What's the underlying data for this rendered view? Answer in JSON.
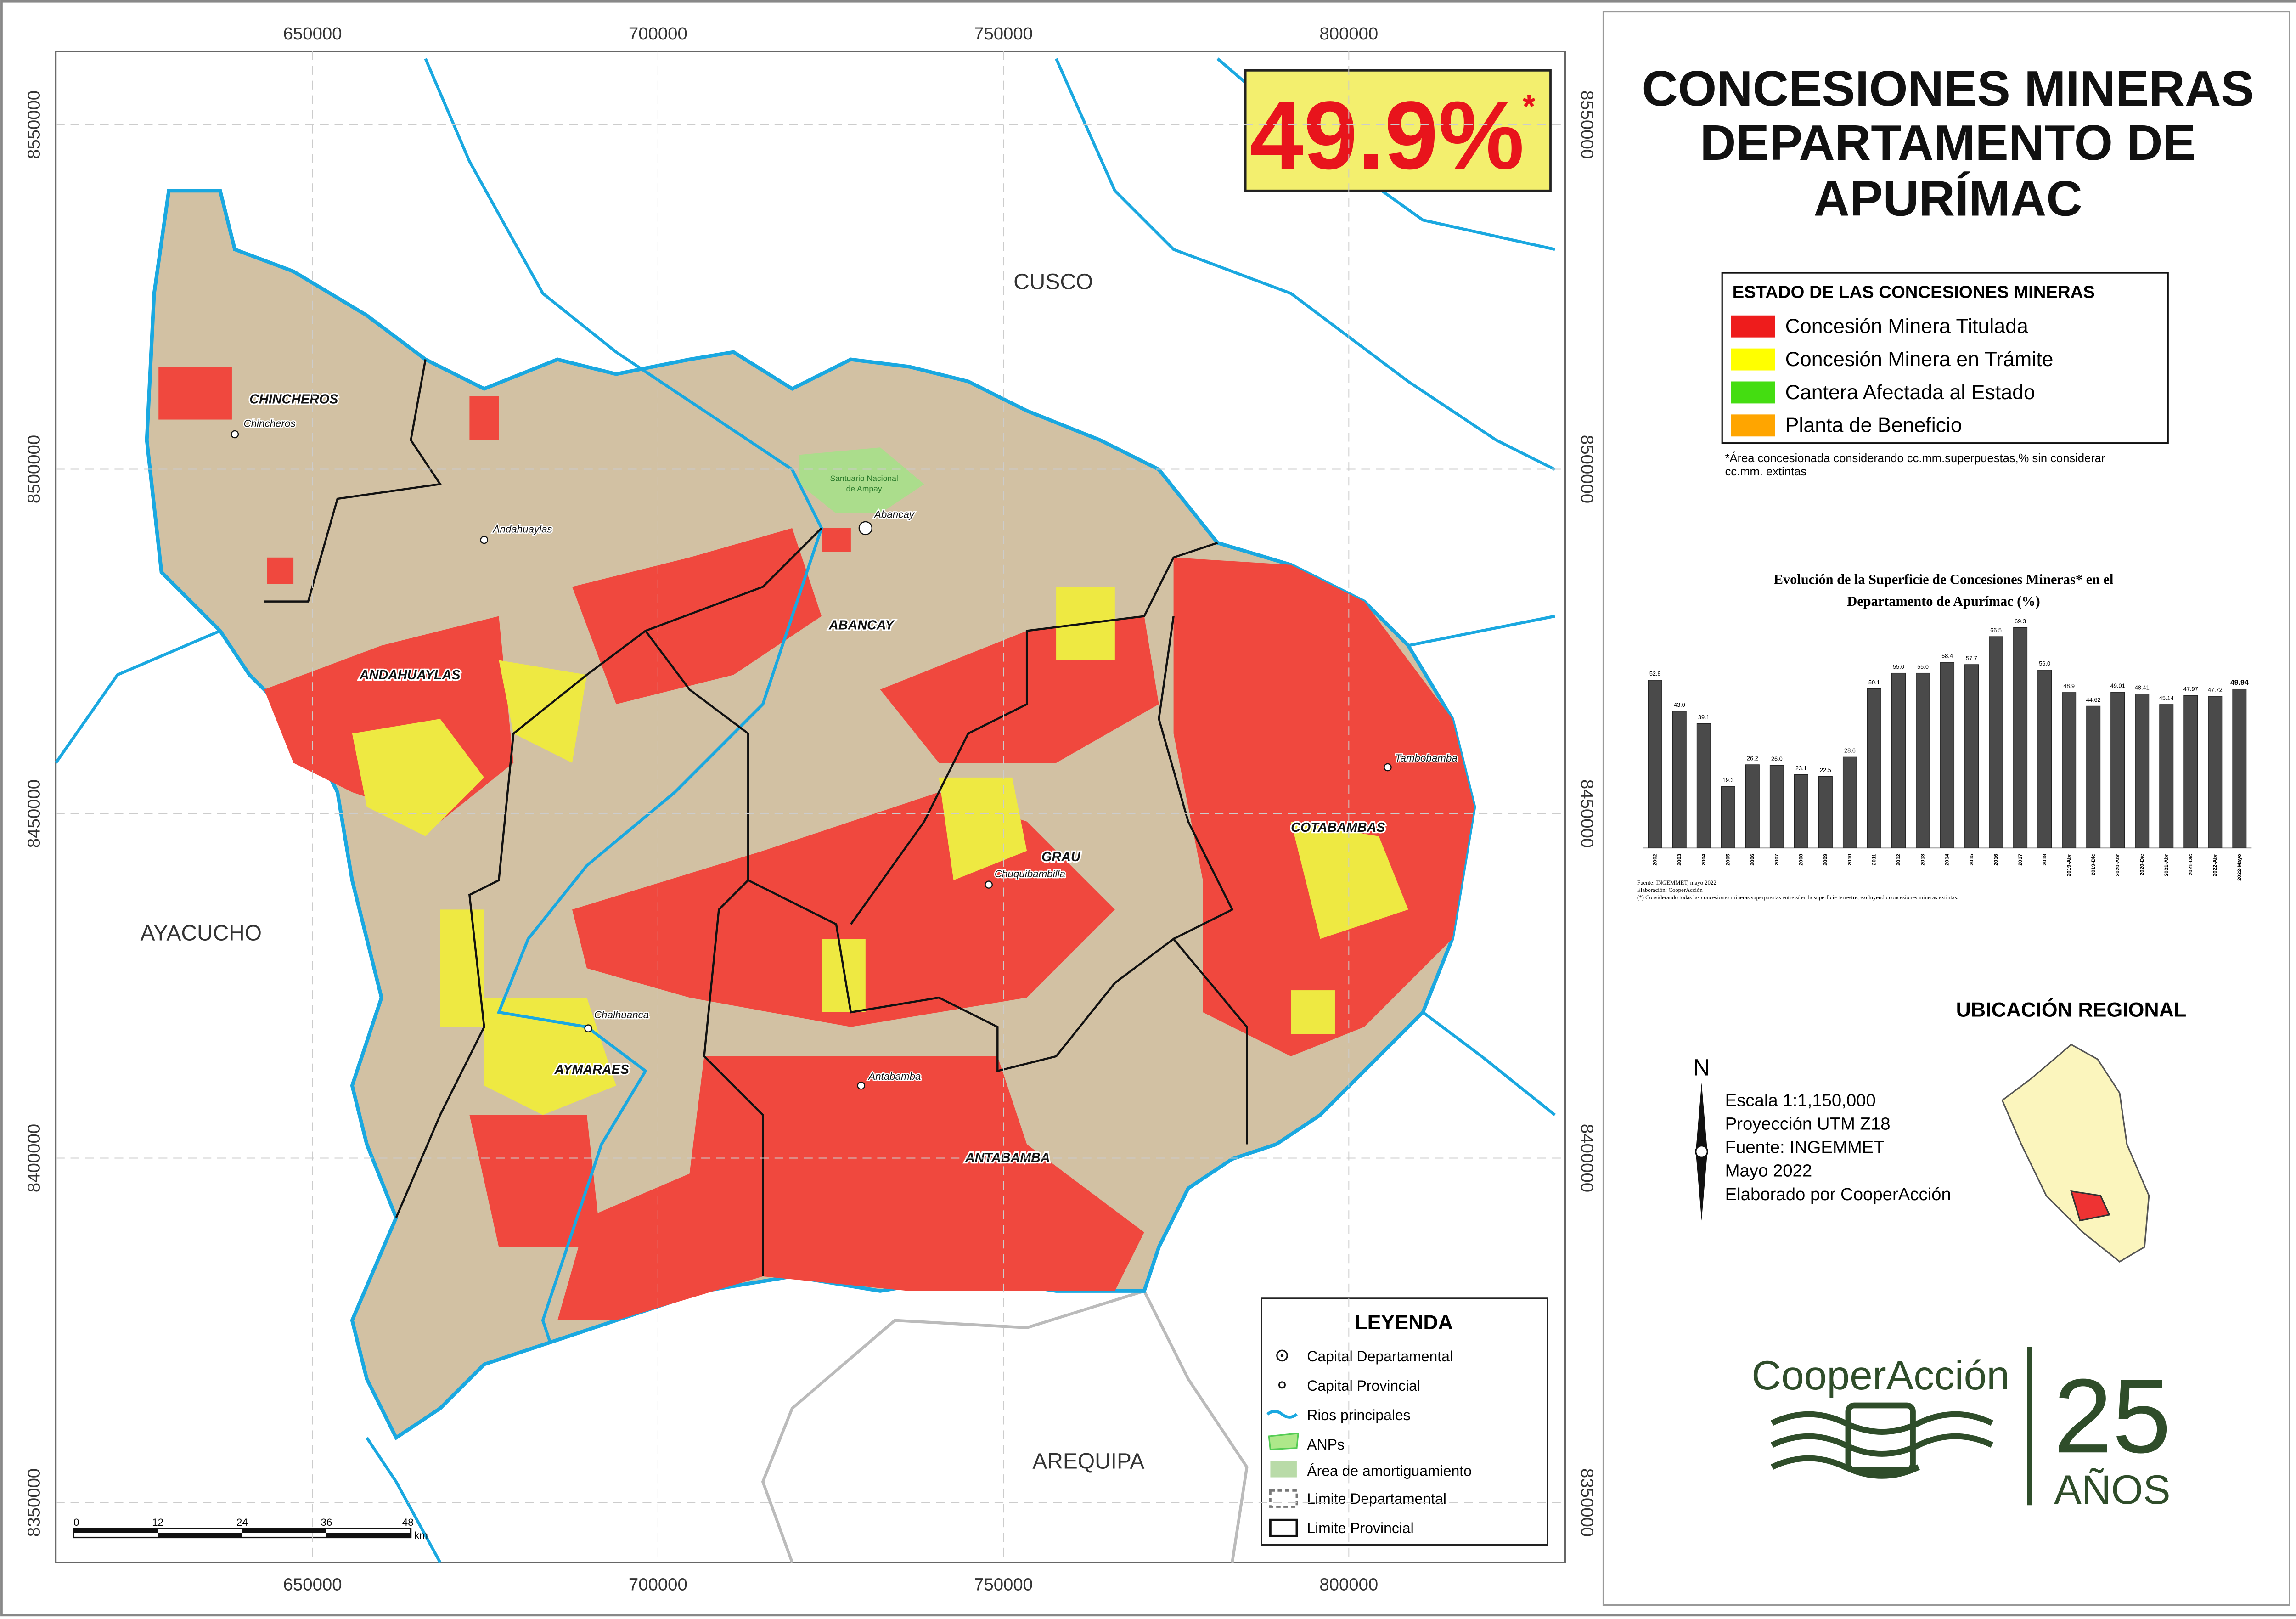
{
  "title": [
    "CONCESIONES MINERAS",
    "DEPARTAMENTO DE",
    "APURÍMAC"
  ],
  "highlight": {
    "text": "49.9%",
    "mark": "*"
  },
  "map": {
    "xticks": [
      {
        "value": 650000,
        "label": "650000"
      },
      {
        "value": 700000,
        "label": "700000"
      },
      {
        "value": 750000,
        "label": "750000"
      },
      {
        "value": 800000,
        "label": "800000"
      }
    ],
    "yticks": [
      {
        "value": 8550000,
        "label": "8550000"
      },
      {
        "value": 8500000,
        "label": "8500000"
      },
      {
        "value": 8450000,
        "label": "8450000"
      },
      {
        "value": 8400000,
        "label": "8400000"
      },
      {
        "value": 8350000,
        "label": "8350000"
      }
    ],
    "regions": [
      "CUSCO",
      "AYACUCHO",
      "AREQUIPA"
    ],
    "provinces": [
      "CHINCHEROS",
      "ANDAHUAYLAS",
      "ABANCAY",
      "GRAU",
      "COTABAMBAS",
      "AYMARAES",
      "ANTABAMBA"
    ],
    "capitals": [
      "Chincheros",
      "Andahuaylas",
      "Abancay",
      "Chuquibambilla",
      "Tambobamba",
      "Chalhuanca",
      "Antabamba"
    ],
    "protected_area": [
      "Santuario Nacional",
      "de Ampay"
    ],
    "scale_bar": {
      "ticks": [
        "0",
        "12",
        "24",
        "36",
        "48"
      ],
      "unit": "km"
    }
  },
  "legend": {
    "title": "LEYENDA",
    "items": [
      "Capital Departamental",
      "Capital Provincial",
      "Rios principales",
      "ANPs",
      "Área de amortiguamiento",
      "Limite Departamental",
      "Limite Provincial"
    ]
  },
  "status_legend": {
    "title": "ESTADO DE LAS CONCESIONES MINERAS",
    "items": [
      {
        "name": "Concesión Minera Titulada",
        "color": "#ee1c1c"
      },
      {
        "name": "Concesión Minera en Trámite",
        "color": "#ffff00"
      },
      {
        "name": "Cantera Afectada al Estado",
        "color": "#44dd11"
      },
      {
        "name": "Planta de Beneficio",
        "color": "#ffa500"
      }
    ],
    "note": [
      "*Área concesionada considerando cc.mm.superpuestas,% sin considerar",
      "cc.mm. extintas"
    ]
  },
  "chart_data": {
    "type": "bar",
    "title": [
      "Evolución de la Superficie de Concesiones Mineras* en el",
      "Departamento de Apurímac (%)"
    ],
    "categories": [
      "2002",
      "2003",
      "2004",
      "2005",
      "2006",
      "2007",
      "2008",
      "2009",
      "2010",
      "2011",
      "2012",
      "2013",
      "2014",
      "2015",
      "2016",
      "2017",
      "2018",
      "2019-Abr",
      "2019-Dic",
      "2020-Abr",
      "2020-Dic",
      "2021-Abr",
      "2021-Dic",
      "2022-Abr",
      "2022-Mayo"
    ],
    "values": [
      52.8,
      43.0,
      39.1,
      19.3,
      26.2,
      26.0,
      23.1,
      22.5,
      28.6,
      50.1,
      55.0,
      55.0,
      58.4,
      57.7,
      66.5,
      69.3,
      56.0,
      48.9,
      44.62,
      49.01,
      48.41,
      45.14,
      47.97,
      47.72,
      49.94
    ],
    "value_labels": [
      "52.8",
      "43.0",
      "39.1",
      "19.3",
      "26.2",
      "26.0",
      "23.1",
      "22.5",
      "28.6",
      "50.1",
      "55.0",
      "55.0",
      "58.4",
      "57.7",
      "66.5",
      "69.3",
      "56.0",
      "48.9",
      "44.62",
      "49.01",
      "48.41",
      "45.14",
      "47.97",
      "47.72",
      "49.94"
    ],
    "color": "#4a4a4a",
    "ylim": [
      0,
      72
    ],
    "sources": [
      "Fuente: INGEMMET, mayo 2022",
      "Elaboración: CooperAcción",
      "(*) Considerando todas las concesiones mineras superpuestas entre sí en la superficie terrestre, excluyendo concesiones mineras extintas."
    ]
  },
  "regional": {
    "title": "UBICACIÓN REGIONAL",
    "north": "N",
    "info": [
      "Escala 1:1,150,000",
      "Proyección UTM Z18",
      "Fuente: INGEMMET",
      "Mayo 2022",
      "Elaborado por CooperAcción"
    ]
  },
  "logo": {
    "name": "CooperAcción",
    "number": "25",
    "years": "AÑOS"
  }
}
